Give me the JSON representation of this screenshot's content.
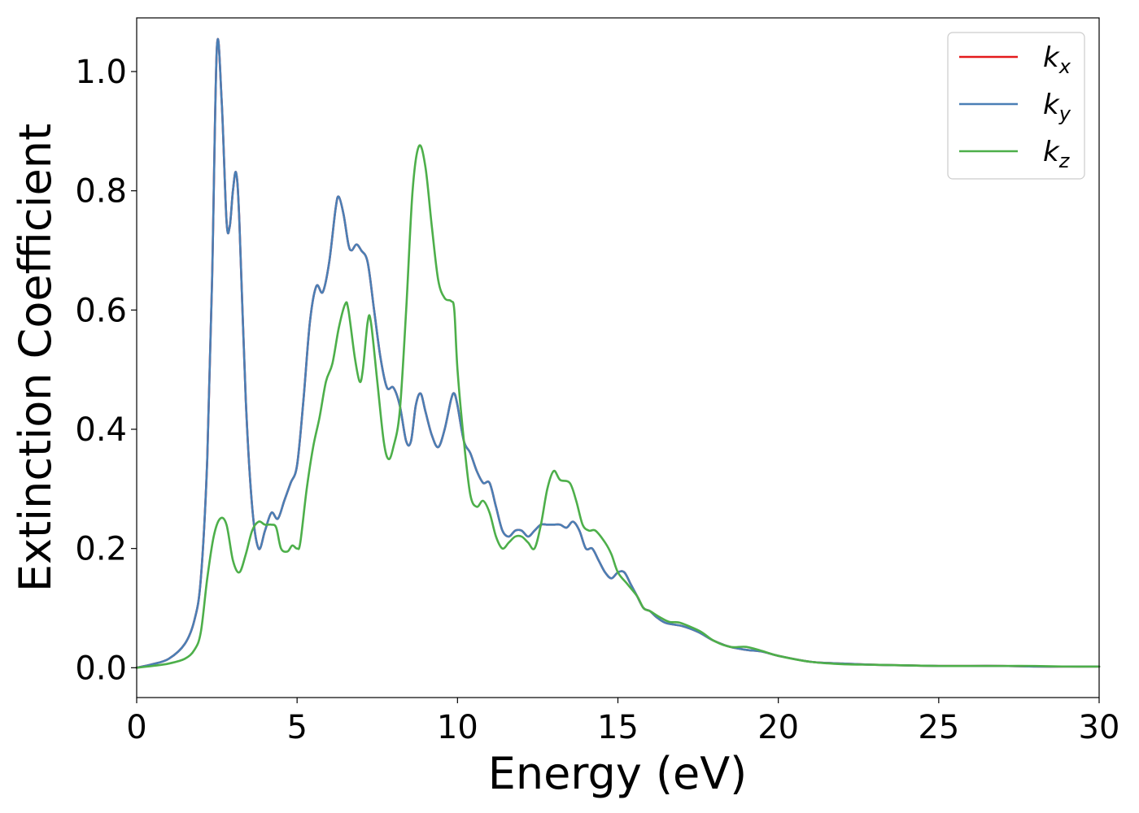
{
  "chart_data": {
    "type": "line",
    "title": "",
    "xlabel": "Energy (eV)",
    "ylabel": "Extinction Coefficient",
    "xlim": [
      0,
      30
    ],
    "ylim": [
      -0.05,
      1.09
    ],
    "xticks": [
      0,
      5,
      10,
      15,
      20,
      25,
      30
    ],
    "xtick_labels": [
      "0",
      "5",
      "10",
      "15",
      "20",
      "25",
      "30"
    ],
    "yticks": [
      0.0,
      0.2,
      0.4,
      0.6,
      0.8,
      1.0
    ],
    "ytick_labels": [
      "0.0",
      "0.2",
      "0.4",
      "0.6",
      "0.8",
      "1.0"
    ],
    "grid": false,
    "legend_position": "top-right",
    "series": [
      {
        "name": "k_x",
        "legend_base": "k",
        "legend_sub": "x",
        "color": "#e41a1c",
        "points": [
          [
            0,
            0
          ],
          [
            0.5,
            0.006
          ],
          [
            1,
            0.015
          ],
          [
            1.5,
            0.04
          ],
          [
            1.8,
            0.08
          ],
          [
            2.0,
            0.15
          ],
          [
            2.2,
            0.35
          ],
          [
            2.35,
            0.65
          ],
          [
            2.5,
            1.04
          ],
          [
            2.65,
            0.95
          ],
          [
            2.8,
            0.75
          ],
          [
            2.9,
            0.74
          ],
          [
            3.0,
            0.8
          ],
          [
            3.1,
            0.83
          ],
          [
            3.2,
            0.75
          ],
          [
            3.4,
            0.45
          ],
          [
            3.6,
            0.27
          ],
          [
            3.8,
            0.2
          ],
          [
            4.0,
            0.23
          ],
          [
            4.2,
            0.26
          ],
          [
            4.4,
            0.25
          ],
          [
            4.6,
            0.28
          ],
          [
            4.8,
            0.31
          ],
          [
            5.0,
            0.34
          ],
          [
            5.2,
            0.45
          ],
          [
            5.4,
            0.58
          ],
          [
            5.6,
            0.64
          ],
          [
            5.8,
            0.63
          ],
          [
            6.0,
            0.68
          ],
          [
            6.2,
            0.77
          ],
          [
            6.3,
            0.79
          ],
          [
            6.45,
            0.76
          ],
          [
            6.6,
            0.71
          ],
          [
            6.7,
            0.7
          ],
          [
            6.85,
            0.71
          ],
          [
            7.0,
            0.7
          ],
          [
            7.2,
            0.68
          ],
          [
            7.4,
            0.6
          ],
          [
            7.6,
            0.52
          ],
          [
            7.8,
            0.47
          ],
          [
            8.0,
            0.47
          ],
          [
            8.2,
            0.44
          ],
          [
            8.4,
            0.38
          ],
          [
            8.55,
            0.38
          ],
          [
            8.7,
            0.44
          ],
          [
            8.85,
            0.46
          ],
          [
            9.0,
            0.43
          ],
          [
            9.2,
            0.39
          ],
          [
            9.4,
            0.37
          ],
          [
            9.6,
            0.4
          ],
          [
            9.8,
            0.45
          ],
          [
            9.9,
            0.46
          ],
          [
            10.0,
            0.44
          ],
          [
            10.2,
            0.38
          ],
          [
            10.4,
            0.36
          ],
          [
            10.6,
            0.33
          ],
          [
            10.8,
            0.31
          ],
          [
            11.0,
            0.31
          ],
          [
            11.2,
            0.27
          ],
          [
            11.4,
            0.23
          ],
          [
            11.6,
            0.22
          ],
          [
            11.8,
            0.23
          ],
          [
            12.0,
            0.23
          ],
          [
            12.2,
            0.22
          ],
          [
            12.4,
            0.23
          ],
          [
            12.6,
            0.24
          ],
          [
            12.8,
            0.24
          ],
          [
            13.0,
            0.24
          ],
          [
            13.2,
            0.24
          ],
          [
            13.4,
            0.235
          ],
          [
            13.6,
            0.245
          ],
          [
            13.8,
            0.23
          ],
          [
            14.0,
            0.2
          ],
          [
            14.2,
            0.2
          ],
          [
            14.4,
            0.18
          ],
          [
            14.6,
            0.16
          ],
          [
            14.8,
            0.15
          ],
          [
            15.0,
            0.16
          ],
          [
            15.2,
            0.16
          ],
          [
            15.4,
            0.14
          ],
          [
            15.6,
            0.12
          ],
          [
            15.8,
            0.1
          ],
          [
            16.0,
            0.095
          ],
          [
            16.2,
            0.085
          ],
          [
            16.5,
            0.075
          ],
          [
            17.0,
            0.07
          ],
          [
            17.5,
            0.06
          ],
          [
            18.0,
            0.045
          ],
          [
            18.5,
            0.035
          ],
          [
            19.0,
            0.03
          ],
          [
            19.5,
            0.027
          ],
          [
            20.0,
            0.02
          ],
          [
            21.0,
            0.01
          ],
          [
            22.0,
            0.007
          ],
          [
            23.0,
            0.005
          ],
          [
            24.0,
            0.004
          ],
          [
            25.0,
            0.003
          ],
          [
            26.0,
            0.003
          ],
          [
            27.0,
            0.003
          ],
          [
            28.0,
            0.002
          ],
          [
            29.0,
            0.002
          ],
          [
            30.0,
            0.002
          ]
        ]
      },
      {
        "name": "k_y",
        "legend_base": "k",
        "legend_sub": "y",
        "color": "#4a7fb5",
        "points": [
          [
            0,
            0
          ],
          [
            0.5,
            0.006
          ],
          [
            1,
            0.015
          ],
          [
            1.5,
            0.04
          ],
          [
            1.8,
            0.08
          ],
          [
            2.0,
            0.15
          ],
          [
            2.2,
            0.35
          ],
          [
            2.35,
            0.65
          ],
          [
            2.5,
            1.04
          ],
          [
            2.65,
            0.95
          ],
          [
            2.8,
            0.75
          ],
          [
            2.9,
            0.74
          ],
          [
            3.0,
            0.8
          ],
          [
            3.1,
            0.83
          ],
          [
            3.2,
            0.75
          ],
          [
            3.4,
            0.45
          ],
          [
            3.6,
            0.27
          ],
          [
            3.8,
            0.2
          ],
          [
            4.0,
            0.23
          ],
          [
            4.2,
            0.26
          ],
          [
            4.4,
            0.25
          ],
          [
            4.6,
            0.28
          ],
          [
            4.8,
            0.31
          ],
          [
            5.0,
            0.34
          ],
          [
            5.2,
            0.45
          ],
          [
            5.4,
            0.58
          ],
          [
            5.6,
            0.64
          ],
          [
            5.8,
            0.63
          ],
          [
            6.0,
            0.68
          ],
          [
            6.2,
            0.77
          ],
          [
            6.3,
            0.79
          ],
          [
            6.45,
            0.76
          ],
          [
            6.6,
            0.71
          ],
          [
            6.7,
            0.7
          ],
          [
            6.85,
            0.71
          ],
          [
            7.0,
            0.7
          ],
          [
            7.2,
            0.68
          ],
          [
            7.4,
            0.6
          ],
          [
            7.6,
            0.52
          ],
          [
            7.8,
            0.47
          ],
          [
            8.0,
            0.47
          ],
          [
            8.2,
            0.44
          ],
          [
            8.4,
            0.38
          ],
          [
            8.55,
            0.38
          ],
          [
            8.7,
            0.44
          ],
          [
            8.85,
            0.46
          ],
          [
            9.0,
            0.43
          ],
          [
            9.2,
            0.39
          ],
          [
            9.4,
            0.37
          ],
          [
            9.6,
            0.4
          ],
          [
            9.8,
            0.45
          ],
          [
            9.9,
            0.46
          ],
          [
            10.0,
            0.44
          ],
          [
            10.2,
            0.38
          ],
          [
            10.4,
            0.36
          ],
          [
            10.6,
            0.33
          ],
          [
            10.8,
            0.31
          ],
          [
            11.0,
            0.31
          ],
          [
            11.2,
            0.27
          ],
          [
            11.4,
            0.23
          ],
          [
            11.6,
            0.22
          ],
          [
            11.8,
            0.23
          ],
          [
            12.0,
            0.23
          ],
          [
            12.2,
            0.22
          ],
          [
            12.4,
            0.23
          ],
          [
            12.6,
            0.24
          ],
          [
            12.8,
            0.24
          ],
          [
            13.0,
            0.24
          ],
          [
            13.2,
            0.24
          ],
          [
            13.4,
            0.235
          ],
          [
            13.6,
            0.245
          ],
          [
            13.8,
            0.23
          ],
          [
            14.0,
            0.2
          ],
          [
            14.2,
            0.2
          ],
          [
            14.4,
            0.18
          ],
          [
            14.6,
            0.16
          ],
          [
            14.8,
            0.15
          ],
          [
            15.0,
            0.16
          ],
          [
            15.2,
            0.16
          ],
          [
            15.4,
            0.14
          ],
          [
            15.6,
            0.12
          ],
          [
            15.8,
            0.1
          ],
          [
            16.0,
            0.095
          ],
          [
            16.2,
            0.085
          ],
          [
            16.5,
            0.075
          ],
          [
            17.0,
            0.07
          ],
          [
            17.5,
            0.06
          ],
          [
            18.0,
            0.045
          ],
          [
            18.5,
            0.035
          ],
          [
            19.0,
            0.03
          ],
          [
            19.5,
            0.027
          ],
          [
            20.0,
            0.02
          ],
          [
            21.0,
            0.01
          ],
          [
            22.0,
            0.007
          ],
          [
            23.0,
            0.005
          ],
          [
            24.0,
            0.004
          ],
          [
            25.0,
            0.003
          ],
          [
            26.0,
            0.003
          ],
          [
            27.0,
            0.003
          ],
          [
            28.0,
            0.002
          ],
          [
            29.0,
            0.002
          ],
          [
            30.0,
            0.002
          ]
        ]
      },
      {
        "name": "k_z",
        "legend_base": "k",
        "legend_sub": "z",
        "color": "#4daf4a",
        "points": [
          [
            0,
            0
          ],
          [
            0.5,
            0.003
          ],
          [
            1,
            0.007
          ],
          [
            1.5,
            0.015
          ],
          [
            1.8,
            0.03
          ],
          [
            2.0,
            0.06
          ],
          [
            2.2,
            0.15
          ],
          [
            2.4,
            0.22
          ],
          [
            2.6,
            0.25
          ],
          [
            2.8,
            0.24
          ],
          [
            3.0,
            0.18
          ],
          [
            3.2,
            0.16
          ],
          [
            3.4,
            0.19
          ],
          [
            3.6,
            0.23
          ],
          [
            3.8,
            0.245
          ],
          [
            4.0,
            0.24
          ],
          [
            4.2,
            0.24
          ],
          [
            4.35,
            0.235
          ],
          [
            4.5,
            0.2
          ],
          [
            4.7,
            0.195
          ],
          [
            4.85,
            0.205
          ],
          [
            5.0,
            0.2
          ],
          [
            5.1,
            0.21
          ],
          [
            5.3,
            0.3
          ],
          [
            5.5,
            0.37
          ],
          [
            5.7,
            0.42
          ],
          [
            5.9,
            0.48
          ],
          [
            6.1,
            0.51
          ],
          [
            6.3,
            0.57
          ],
          [
            6.5,
            0.61
          ],
          [
            6.6,
            0.6
          ],
          [
            6.8,
            0.52
          ],
          [
            6.95,
            0.48
          ],
          [
            7.05,
            0.5
          ],
          [
            7.2,
            0.58
          ],
          [
            7.3,
            0.58
          ],
          [
            7.5,
            0.48
          ],
          [
            7.7,
            0.38
          ],
          [
            7.85,
            0.35
          ],
          [
            8.0,
            0.37
          ],
          [
            8.2,
            0.43
          ],
          [
            8.4,
            0.6
          ],
          [
            8.6,
            0.8
          ],
          [
            8.8,
            0.875
          ],
          [
            9.0,
            0.84
          ],
          [
            9.2,
            0.74
          ],
          [
            9.4,
            0.65
          ],
          [
            9.6,
            0.62
          ],
          [
            9.8,
            0.615
          ],
          [
            9.9,
            0.6
          ],
          [
            10.0,
            0.5
          ],
          [
            10.2,
            0.38
          ],
          [
            10.4,
            0.29
          ],
          [
            10.6,
            0.27
          ],
          [
            10.8,
            0.28
          ],
          [
            11.0,
            0.26
          ],
          [
            11.2,
            0.22
          ],
          [
            11.4,
            0.2
          ],
          [
            11.6,
            0.21
          ],
          [
            11.8,
            0.22
          ],
          [
            12.0,
            0.22
          ],
          [
            12.2,
            0.21
          ],
          [
            12.4,
            0.2
          ],
          [
            12.6,
            0.24
          ],
          [
            12.8,
            0.3
          ],
          [
            13.0,
            0.33
          ],
          [
            13.2,
            0.315
          ],
          [
            13.5,
            0.31
          ],
          [
            13.7,
            0.28
          ],
          [
            13.9,
            0.24
          ],
          [
            14.1,
            0.23
          ],
          [
            14.3,
            0.23
          ],
          [
            14.6,
            0.21
          ],
          [
            14.8,
            0.19
          ],
          [
            15.0,
            0.16
          ],
          [
            15.3,
            0.14
          ],
          [
            15.6,
            0.12
          ],
          [
            15.8,
            0.1
          ],
          [
            16.0,
            0.095
          ],
          [
            16.3,
            0.085
          ],
          [
            16.6,
            0.077
          ],
          [
            16.9,
            0.076
          ],
          [
            17.2,
            0.07
          ],
          [
            17.6,
            0.06
          ],
          [
            18.0,
            0.045
          ],
          [
            18.5,
            0.035
          ],
          [
            19.0,
            0.035
          ],
          [
            19.5,
            0.028
          ],
          [
            20.0,
            0.02
          ],
          [
            21.0,
            0.01
          ],
          [
            22.0,
            0.006
          ],
          [
            23.0,
            0.005
          ],
          [
            24.0,
            0.004
          ],
          [
            25.0,
            0.003
          ],
          [
            26.0,
            0.003
          ],
          [
            27.0,
            0.003
          ],
          [
            28.0,
            0.003
          ],
          [
            29.0,
            0.002
          ],
          [
            30.0,
            0.002
          ]
        ]
      }
    ]
  }
}
